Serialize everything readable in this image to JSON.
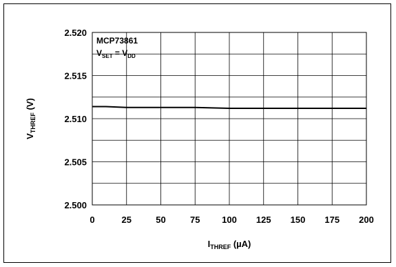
{
  "chart_data": {
    "type": "line",
    "xlabel": {
      "main": "I",
      "sub": "THREF",
      "suffix": " (µA)"
    },
    "ylabel": {
      "main": "V",
      "sub": "THREF",
      "suffix": " (V)"
    },
    "xlim": [
      0,
      200
    ],
    "ylim": [
      2.5,
      2.52
    ],
    "x_ticks": [
      0,
      25,
      50,
      75,
      100,
      125,
      150,
      175,
      200
    ],
    "x_tick_labels": [
      "0",
      "25",
      "50",
      "75",
      "100",
      "125",
      "150",
      "175",
      "200"
    ],
    "y_ticks": [
      2.5,
      2.505,
      2.51,
      2.515,
      2.52
    ],
    "y_tick_labels": [
      "2.500",
      "2.505",
      "2.510",
      "2.515",
      "2.520"
    ],
    "grid": true,
    "annotation": {
      "line1": "MCP73861",
      "line2": [
        {
          "text": "V",
          "sub": false
        },
        {
          "text": "SET",
          "sub": true
        },
        {
          "text": " = V",
          "sub": false
        },
        {
          "text": "DD",
          "sub": true
        }
      ]
    },
    "series": [
      {
        "x": [
          0,
          10,
          25,
          50,
          75,
          100,
          125,
          150,
          175,
          200
        ],
        "values": [
          2.5114,
          2.5114,
          2.5113,
          2.5113,
          2.5113,
          2.5112,
          2.5112,
          2.5112,
          2.5112,
          2.5112
        ],
        "color": "#000000"
      }
    ]
  }
}
